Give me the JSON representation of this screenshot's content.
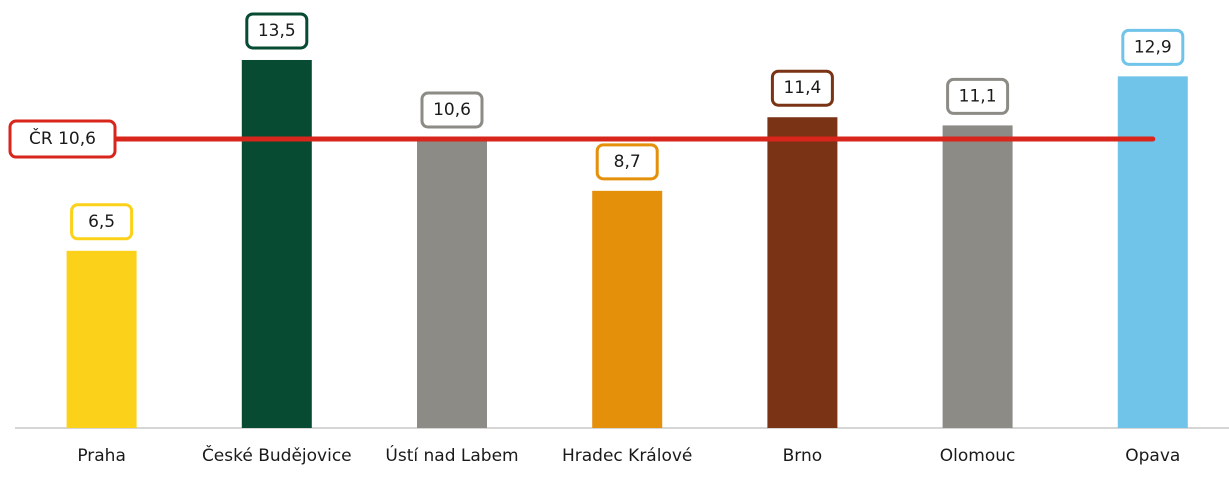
{
  "chart_data": {
    "type": "bar",
    "categories": [
      "Praha",
      "České Budějovice",
      "Ústí nad Labem",
      "Hradec Králové",
      "Brno",
      "Olomouc",
      "Opava"
    ],
    "values": [
      6.5,
      13.5,
      10.6,
      8.7,
      11.4,
      11.1,
      12.9
    ],
    "value_labels": [
      "6,5",
      "13,5",
      "10,6",
      "8,7",
      "11,4",
      "11,1",
      "12,9"
    ],
    "colors": [
      "#fbd11a",
      "#074b32",
      "#8c8b85",
      "#e4900a",
      "#7a3314",
      "#8c8b85",
      "#70c4e9"
    ],
    "reference_line": {
      "label": "ČR 10,6",
      "value": 10.6,
      "color": "#d9261c"
    }
  }
}
